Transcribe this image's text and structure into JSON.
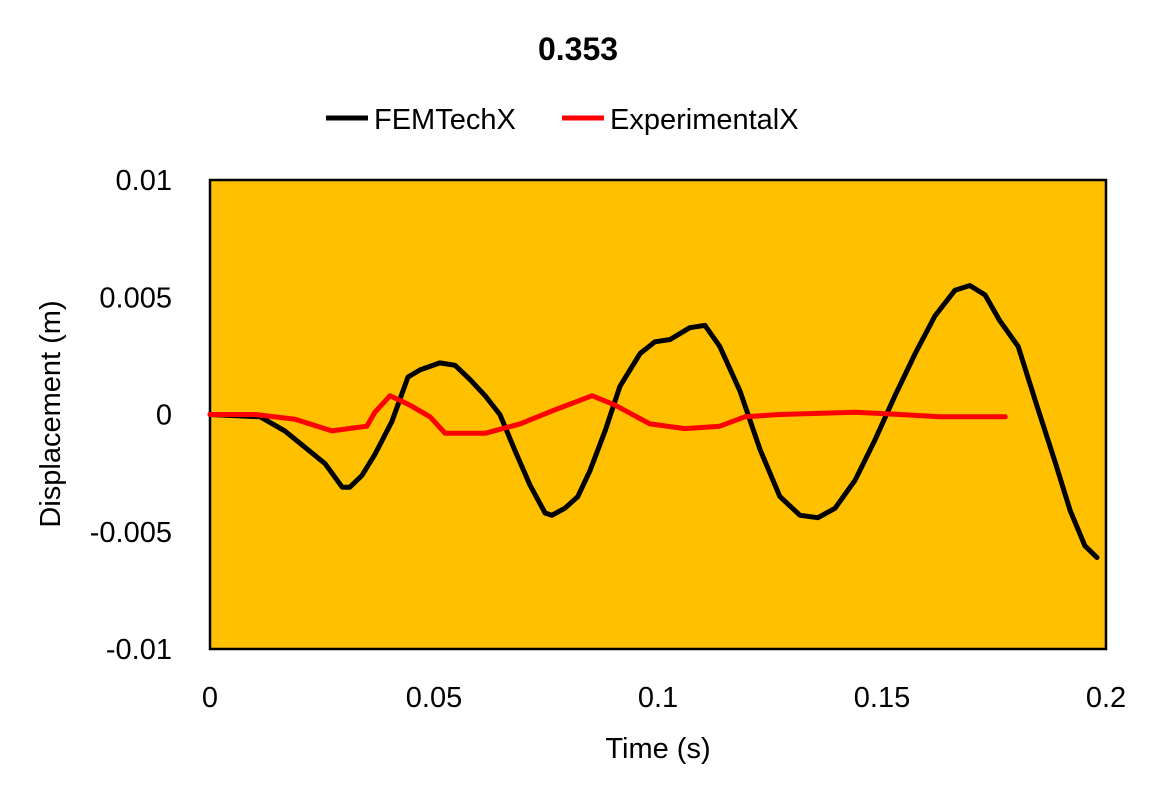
{
  "chart_data": {
    "type": "line",
    "title": "0.353",
    "xlabel": "Time (s)",
    "ylabel": "Displacement (m)",
    "xlim": [
      0,
      0.2
    ],
    "ylim": [
      -0.01,
      0.01
    ],
    "xticks": [
      "0",
      "0.05",
      "0.1",
      "0.15",
      "0.2"
    ],
    "yticks": [
      "0.01",
      "0.005",
      "0",
      "-0.005",
      "-0.01"
    ],
    "xtick_values": [
      0,
      0.05,
      0.1,
      0.15,
      0.2
    ],
    "ytick_values": [
      0.01,
      0.005,
      0,
      -0.005,
      -0.01
    ],
    "grid": false,
    "legend_position": "top",
    "plot_background": "#FFC000",
    "series": [
      {
        "name": "FEMTechX",
        "color": "#000000",
        "x": [
          0,
          0.0112,
          0.0167,
          0.0212,
          0.0257,
          0.0295,
          0.0312,
          0.0339,
          0.0368,
          0.0406,
          0.0442,
          0.0469,
          0.0513,
          0.0547,
          0.058,
          0.0614,
          0.0647,
          0.068,
          0.0714,
          0.0748,
          0.0763,
          0.0792,
          0.0821,
          0.0848,
          0.0882,
          0.0915,
          0.096,
          0.0993,
          0.1027,
          0.1071,
          0.1105,
          0.1138,
          0.1183,
          0.1228,
          0.1272,
          0.1317,
          0.1357,
          0.1395,
          0.144,
          0.1484,
          0.1529,
          0.1574,
          0.1618,
          0.1663,
          0.1696,
          0.173,
          0.1763,
          0.1804,
          0.1842,
          0.1886,
          0.192,
          0.1953,
          0.198
        ],
        "y": [
          0,
          -0.0001,
          -0.0007,
          -0.0014,
          -0.0021,
          -0.0031,
          -0.0031,
          -0.0026,
          -0.0017,
          -0.0003,
          0.0016,
          0.0019,
          0.0022,
          0.0021,
          0.0015,
          0.0008,
          0,
          -0.0015,
          -0.003,
          -0.0042,
          -0.0043,
          -0.004,
          -0.0035,
          -0.0024,
          -0.0007,
          0.0012,
          0.0026,
          0.0031,
          0.0032,
          0.0037,
          0.0038,
          0.0029,
          0.001,
          -0.0015,
          -0.0035,
          -0.0043,
          -0.0044,
          -0.004,
          -0.0028,
          -0.0011,
          0.0008,
          0.0026,
          0.0042,
          0.0053,
          0.0055,
          0.0051,
          0.004,
          0.0029,
          0.0006,
          -0.002,
          -0.0041,
          -0.0056,
          -0.0061
        ]
      },
      {
        "name": "ExperimentalX",
        "color": "#FF0000",
        "x": [
          0,
          0.01,
          0.019,
          0.0272,
          0.035,
          0.0368,
          0.0402,
          0.0446,
          0.0491,
          0.0525,
          0.0614,
          0.0692,
          0.077,
          0.0853,
          0.0904,
          0.0982,
          0.106,
          0.1138,
          0.1194,
          0.1272,
          0.144,
          0.154,
          0.1629,
          0.1708,
          0.1775
        ],
        "y": [
          0,
          0,
          -0.0002,
          -0.0007,
          -0.0005,
          0.0001,
          0.0008,
          0.0004,
          -0.0001,
          -0.0008,
          -0.0008,
          -0.0004,
          0.0002,
          0.0008,
          0.0004,
          -0.0004,
          -0.0006,
          -0.0005,
          -0.0001,
          0,
          0.0001,
          0,
          -0.0001,
          -0.0001,
          -0.0001
        ]
      }
    ]
  }
}
